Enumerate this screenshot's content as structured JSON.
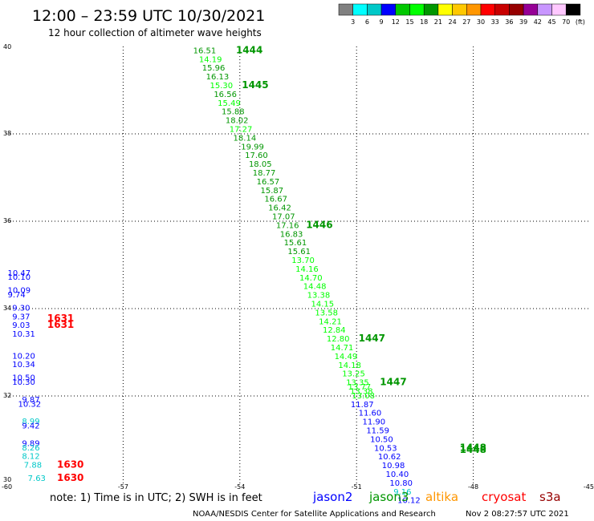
{
  "header": {
    "title": "12:00 – 23:59 UTC 10/30/2021",
    "subtitle": "12 hour collection of altimeter wave heights"
  },
  "color_scale": {
    "colors": [
      "#808080",
      "#00ffff",
      "#00c8c8",
      "#0000ff",
      "#00c800",
      "#00ff00",
      "#009600",
      "#ffff00",
      "#ffc800",
      "#ff9600",
      "#ff0000",
      "#c80000",
      "#960000",
      "#960096",
      "#c896ff",
      "#ffc8ff",
      "#000000"
    ],
    "labels": [
      "3",
      "6",
      "9",
      "12",
      "15",
      "18",
      "21",
      "24",
      "27",
      "30",
      "33",
      "36",
      "39",
      "42",
      "45",
      "70",
      "(ft)"
    ]
  },
  "note": "note:  1) Time is in UTC; 2) SWH is in feet",
  "satellites": [
    {
      "name": "jason2",
      "color": "#0000ff"
    },
    {
      "name": "jason3",
      "color": "#009600"
    },
    {
      "name": "altika",
      "color": "#ff9600"
    },
    {
      "name": "cryosat",
      "color": "#ff0000"
    },
    {
      "name": "s3a",
      "color": "#960000"
    }
  ],
  "footer": {
    "left": "NOAA/NESDIS Center for Satellite Applications and Research",
    "right": "Nov  2 08:27:57 UTC 2021"
  },
  "chart_data": {
    "type": "scatter",
    "xlim": [
      -60,
      -45
    ],
    "ylim": [
      30,
      40
    ],
    "x_ticks": [
      "-60",
      "-57",
      "-54",
      "-51",
      "-48",
      "-45"
    ],
    "y_ticks": [
      "30",
      "32",
      "34",
      "36",
      "38",
      "40"
    ],
    "grid": true,
    "series": [
      {
        "name": "jason3",
        "points": [
          {
            "lon": -55.2,
            "lat": 39.92,
            "v": "16.51",
            "c": "#009600"
          },
          {
            "lon": -55.05,
            "lat": 39.72,
            "v": "14.19",
            "c": "#00ff00"
          },
          {
            "lon": -54.97,
            "lat": 39.52,
            "v": "15.96",
            "c": "#009600"
          },
          {
            "lon": -54.87,
            "lat": 39.32,
            "v": "16.13",
            "c": "#009600"
          },
          {
            "lon": -54.77,
            "lat": 39.12,
            "v": "15.30",
            "c": "#00ff00"
          },
          {
            "lon": -54.67,
            "lat": 38.92,
            "v": "16.56",
            "c": "#009600"
          },
          {
            "lon": -54.57,
            "lat": 38.72,
            "v": "15.49",
            "c": "#00ff00"
          },
          {
            "lon": -54.47,
            "lat": 38.52,
            "v": "15.88",
            "c": "#009600"
          },
          {
            "lon": -54.37,
            "lat": 38.32,
            "v": "18.02",
            "c": "#009600"
          },
          {
            "lon": -54.27,
            "lat": 38.12,
            "v": "17.27",
            "c": "#00ff00"
          },
          {
            "lon": -54.17,
            "lat": 37.92,
            "v": "18.14",
            "c": "#009600"
          },
          {
            "lon": -53.97,
            "lat": 37.72,
            "v": "19.99",
            "c": "#009600"
          },
          {
            "lon": -53.87,
            "lat": 37.52,
            "v": "17.60",
            "c": "#009600"
          },
          {
            "lon": -53.77,
            "lat": 37.32,
            "v": "18.05",
            "c": "#009600"
          },
          {
            "lon": -53.67,
            "lat": 37.12,
            "v": "18.77",
            "c": "#009600"
          },
          {
            "lon": -53.57,
            "lat": 36.92,
            "v": "16.57",
            "c": "#009600"
          },
          {
            "lon": -53.47,
            "lat": 36.72,
            "v": "15.87",
            "c": "#009600"
          },
          {
            "lon": -53.37,
            "lat": 36.52,
            "v": "16.67",
            "c": "#009600"
          },
          {
            "lon": -53.27,
            "lat": 36.32,
            "v": "16.42",
            "c": "#009600"
          },
          {
            "lon": -53.17,
            "lat": 36.12,
            "v": "17.07",
            "c": "#009600"
          },
          {
            "lon": -53.07,
            "lat": 35.92,
            "v": "17.16",
            "c": "#009600"
          },
          {
            "lon": -52.97,
            "lat": 35.72,
            "v": "16.83",
            "c": "#009600"
          },
          {
            "lon": -52.87,
            "lat": 35.52,
            "v": "15.61",
            "c": "#009600"
          },
          {
            "lon": -52.77,
            "lat": 35.32,
            "v": "15.61",
            "c": "#009600"
          },
          {
            "lon": -52.67,
            "lat": 35.12,
            "v": "13.70",
            "c": "#00ff00"
          },
          {
            "lon": -52.57,
            "lat": 34.92,
            "v": "14.16",
            "c": "#00ff00"
          },
          {
            "lon": -52.47,
            "lat": 34.72,
            "v": "14.70",
            "c": "#00ff00"
          },
          {
            "lon": -52.37,
            "lat": 34.52,
            "v": "14.48",
            "c": "#00ff00"
          },
          {
            "lon": -52.27,
            "lat": 34.32,
            "v": "13.38",
            "c": "#00ff00"
          },
          {
            "lon": -52.17,
            "lat": 34.12,
            "v": "14.15",
            "c": "#00ff00"
          },
          {
            "lon": -52.07,
            "lat": 33.92,
            "v": "13.58",
            "c": "#00ff00"
          },
          {
            "lon": -51.97,
            "lat": 33.72,
            "v": "14.21",
            "c": "#00ff00"
          },
          {
            "lon": -51.87,
            "lat": 33.52,
            "v": "12.84",
            "c": "#00ff00"
          },
          {
            "lon": -51.77,
            "lat": 33.32,
            "v": "12.80",
            "c": "#00ff00"
          },
          {
            "lon": -51.67,
            "lat": 33.12,
            "v": "14.71",
            "c": "#00ff00"
          },
          {
            "lon": -51.57,
            "lat": 32.92,
            "v": "14.49",
            "c": "#00ff00"
          },
          {
            "lon": -51.47,
            "lat": 32.72,
            "v": "14.18",
            "c": "#00ff00"
          },
          {
            "lon": -51.37,
            "lat": 32.52,
            "v": "13.25",
            "c": "#00ff00"
          },
          {
            "lon": -51.27,
            "lat": 32.32,
            "v": "13.35",
            "c": "#00ff00"
          },
          {
            "lon": -51.22,
            "lat": 32.22,
            "v": "13.77",
            "c": "#00ff00"
          },
          {
            "lon": -51.17,
            "lat": 32.12,
            "v": "13.38",
            "c": "#00ff00"
          },
          {
            "lon": -51.12,
            "lat": 32.02,
            "v": "13.08",
            "c": "#00ff00"
          }
        ]
      },
      {
        "name": "jason2",
        "points": [
          {
            "lon": -51.15,
            "lat": 31.82,
            "v": "11.87",
            "c": "#0000ff"
          },
          {
            "lon": -50.95,
            "lat": 31.62,
            "v": "11.60",
            "c": "#0000ff"
          },
          {
            "lon": -50.85,
            "lat": 31.42,
            "v": "11.90",
            "c": "#0000ff"
          },
          {
            "lon": -50.75,
            "lat": 31.22,
            "v": "11.59",
            "c": "#0000ff"
          },
          {
            "lon": -50.65,
            "lat": 31.02,
            "v": "10.50",
            "c": "#0000ff"
          },
          {
            "lon": -50.55,
            "lat": 30.82,
            "v": "10.53",
            "c": "#0000ff"
          },
          {
            "lon": -50.45,
            "lat": 30.62,
            "v": "10.62",
            "c": "#0000ff"
          },
          {
            "lon": -50.35,
            "lat": 30.42,
            "v": "10.98",
            "c": "#0000ff"
          },
          {
            "lon": -50.25,
            "lat": 30.22,
            "v": "10.40",
            "c": "#0000ff"
          },
          {
            "lon": -50.15,
            "lat": 30.02,
            "v": "10.80",
            "c": "#0000ff"
          },
          {
            "lon": -50.05,
            "lat": 29.82,
            "v": "9.16",
            "c": "#00c8c8"
          },
          {
            "lon": -49.95,
            "lat": 29.62,
            "v": "10.12",
            "c": "#0000ff"
          },
          {
            "lon": -59.97,
            "lat": 34.83,
            "v": "10.47",
            "c": "#0000ff"
          },
          {
            "lon": -59.97,
            "lat": 34.73,
            "v": "10.10",
            "c": "#0000ff"
          },
          {
            "lon": -59.97,
            "lat": 34.43,
            "v": "10.09",
            "c": "#0000ff"
          },
          {
            "lon": -59.97,
            "lat": 34.33,
            "v": "9.74",
            "c": "#0000ff"
          },
          {
            "lon": -59.85,
            "lat": 34.03,
            "v": "9.30",
            "c": "#0000ff"
          },
          {
            "lon": -59.85,
            "lat": 33.83,
            "v": "9.37",
            "c": "#0000ff"
          },
          {
            "lon": -59.85,
            "lat": 33.63,
            "v": "9.03",
            "c": "#0000ff"
          },
          {
            "lon": -59.85,
            "lat": 33.43,
            "v": "10.31",
            "c": "#0000ff"
          },
          {
            "lon": -59.85,
            "lat": 32.93,
            "v": "10.20",
            "c": "#0000ff"
          },
          {
            "lon": -59.85,
            "lat": 32.73,
            "v": "10.34",
            "c": "#0000ff"
          },
          {
            "lon": -59.85,
            "lat": 32.43,
            "v": "10.50",
            "c": "#0000ff"
          },
          {
            "lon": -59.85,
            "lat": 32.33,
            "v": "10.30",
            "c": "#0000ff"
          },
          {
            "lon": -59.6,
            "lat": 31.93,
            "v": "9.87",
            "c": "#0000ff"
          },
          {
            "lon": -59.7,
            "lat": 31.83,
            "v": "10.32",
            "c": "#0000ff"
          },
          {
            "lon": -59.6,
            "lat": 31.43,
            "v": "8.99",
            "c": "#00c8c8"
          },
          {
            "lon": -59.6,
            "lat": 31.33,
            "v": "9.42",
            "c": "#0000ff"
          },
          {
            "lon": -59.6,
            "lat": 30.93,
            "v": "9.89",
            "c": "#0000ff"
          },
          {
            "lon": -59.6,
            "lat": 30.83,
            "v": "8.26",
            "c": "#00c8c8"
          },
          {
            "lon": -59.6,
            "lat": 30.63,
            "v": "8.12",
            "c": "#00c8c8"
          },
          {
            "lon": -59.55,
            "lat": 30.43,
            "v": "7.88",
            "c": "#00c8c8"
          },
          {
            "lon": -59.45,
            "lat": 30.13,
            "v": "7.63",
            "c": "#00c8c8"
          }
        ]
      }
    ],
    "time_markers": [
      {
        "lon": -54.1,
        "lat": 39.92,
        "label": "1444",
        "c": "#009600"
      },
      {
        "lon": -53.95,
        "lat": 39.12,
        "label": "1445",
        "c": "#009600"
      },
      {
        "lon": -52.3,
        "lat": 35.92,
        "label": "1446",
        "c": "#009600"
      },
      {
        "lon": -50.95,
        "lat": 33.32,
        "label": "1447",
        "c": "#009600"
      },
      {
        "lon": -50.4,
        "lat": 32.32,
        "label": "1447",
        "c": "#009600"
      },
      {
        "lon": -48.35,
        "lat": 30.82,
        "label": "1448",
        "c": "#009600"
      },
      {
        "lon": -48.35,
        "lat": 30.77,
        "label": "1448",
        "c": "#009600"
      },
      {
        "lon": -58.95,
        "lat": 33.78,
        "label": "1631",
        "c": "#ff0000"
      },
      {
        "lon": -58.95,
        "lat": 33.63,
        "label": "1631",
        "c": "#ff0000"
      },
      {
        "lon": -58.7,
        "lat": 30.43,
        "label": "1630",
        "c": "#ff0000"
      },
      {
        "lon": -58.7,
        "lat": 30.13,
        "label": "1630",
        "c": "#ff0000"
      }
    ]
  }
}
